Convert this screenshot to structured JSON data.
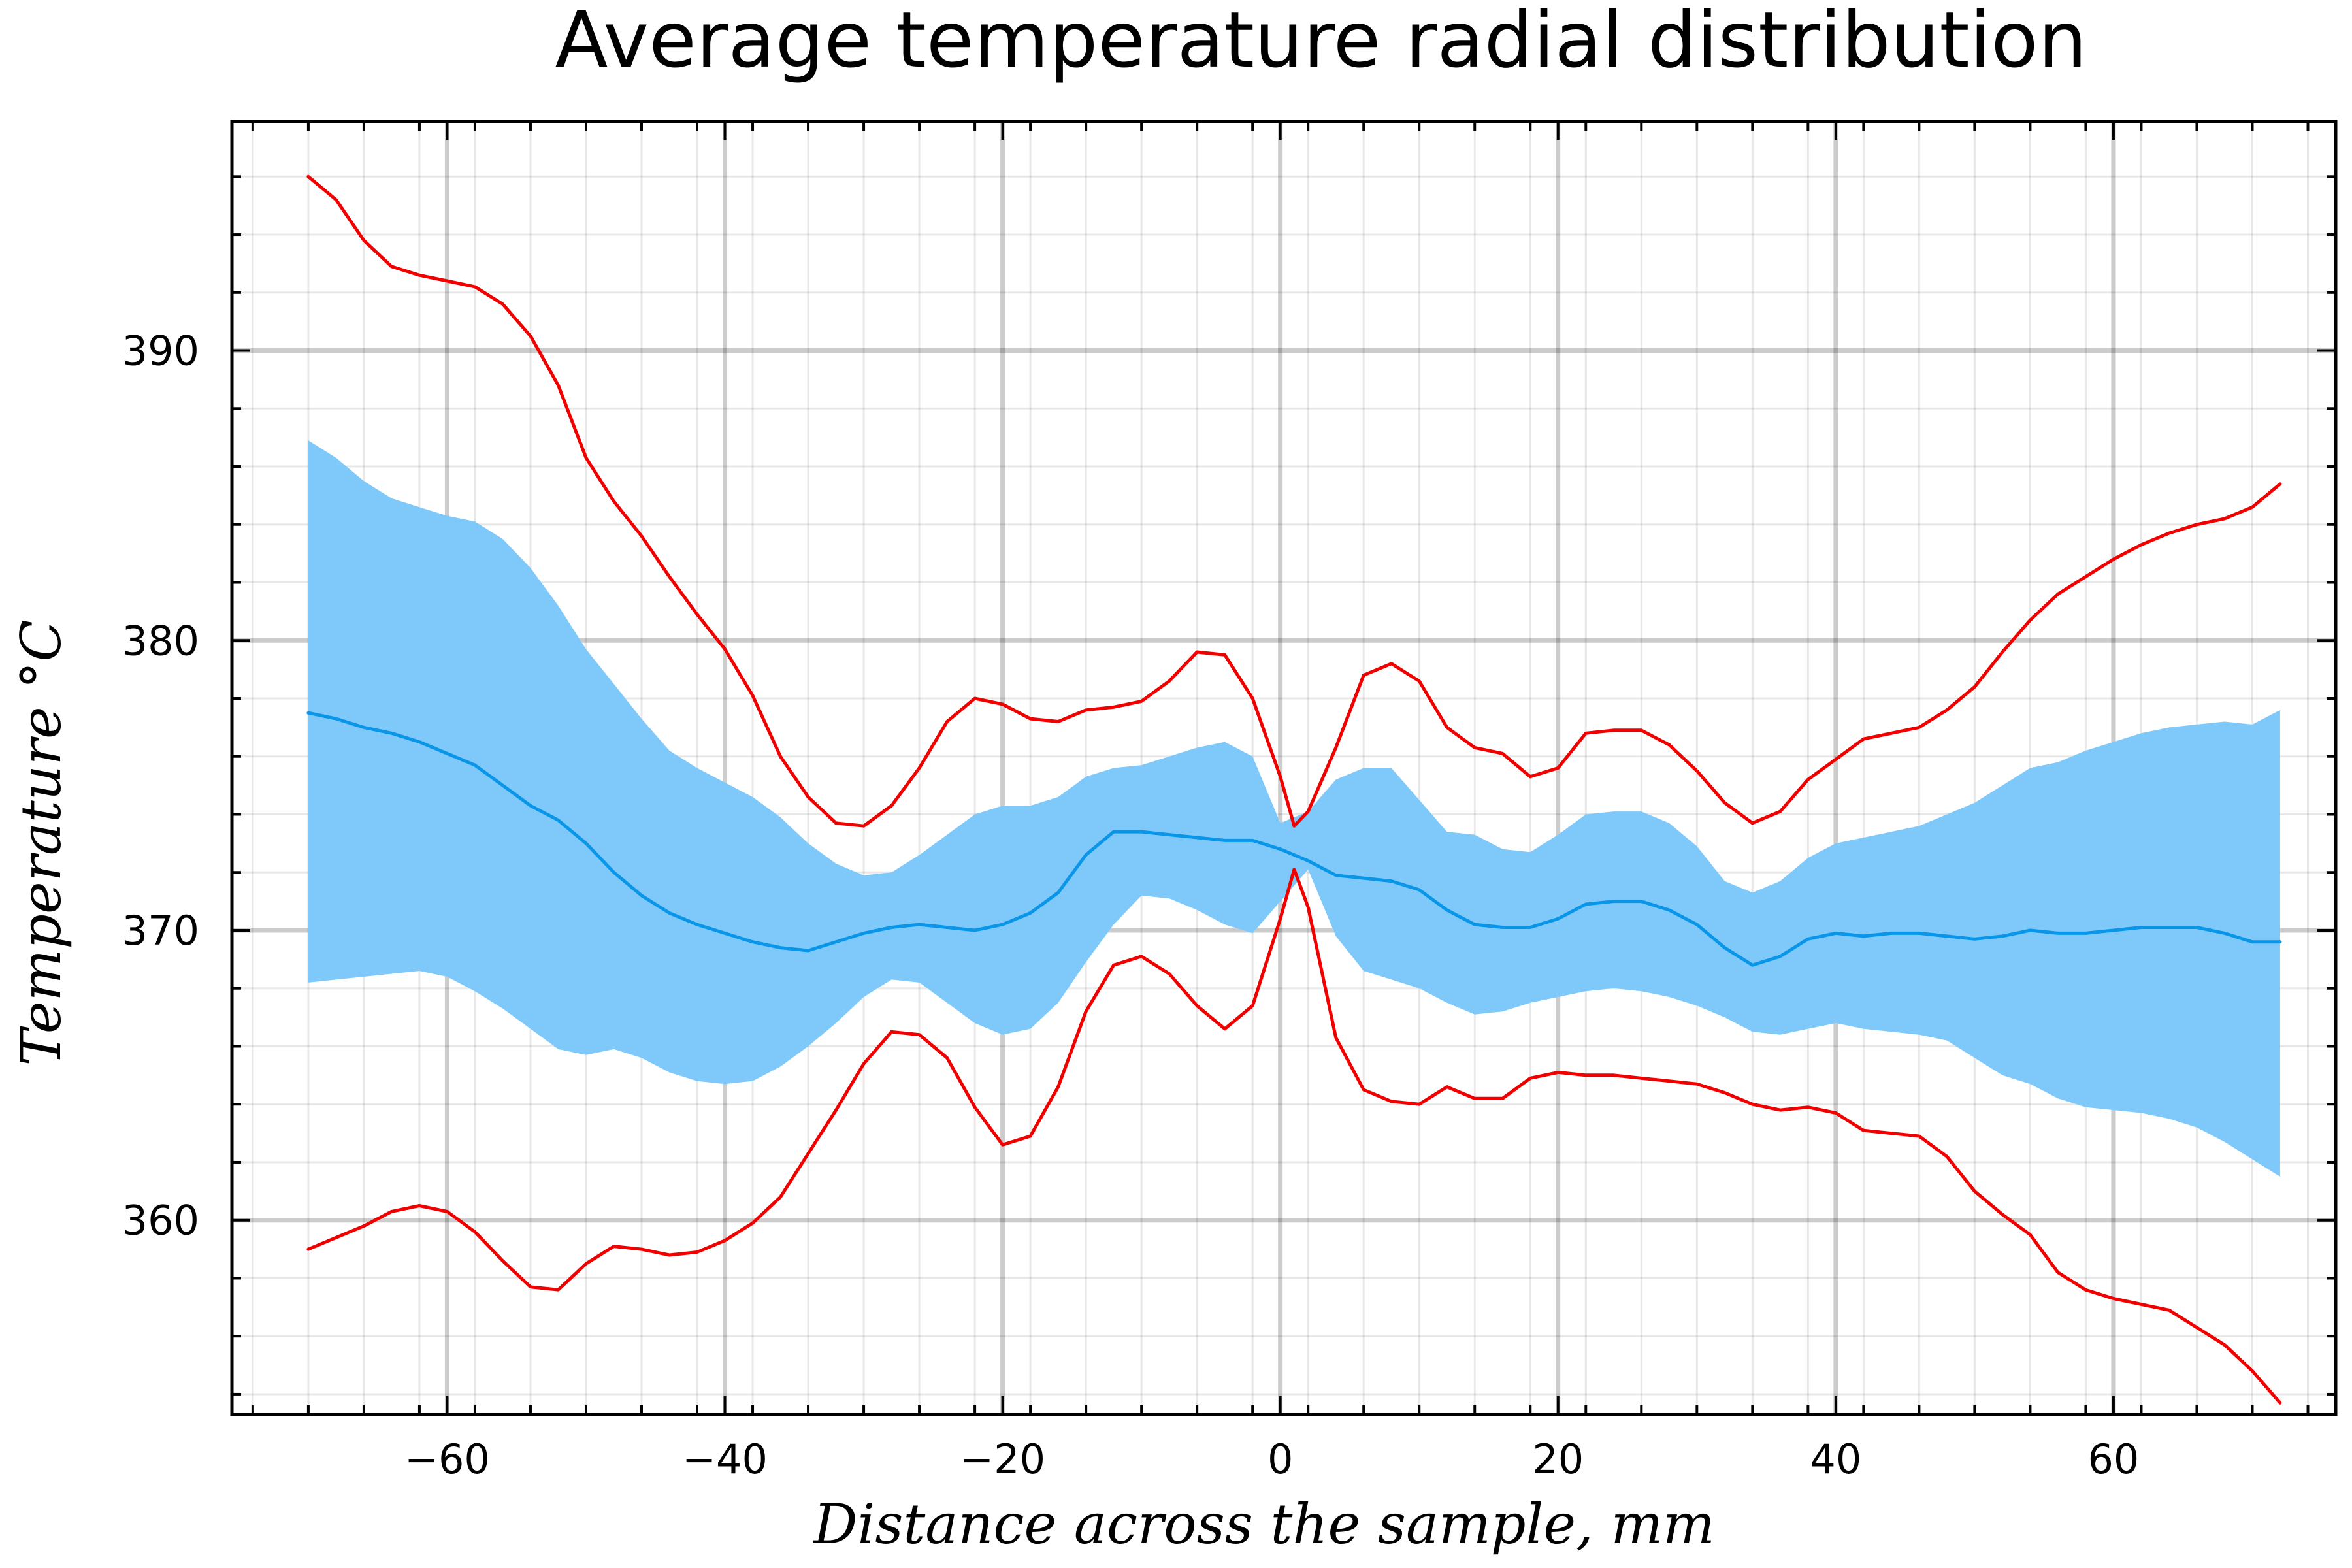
{
  "chart_data": {
    "type": "line",
    "title": "Average temperature radial distribution",
    "xlabel": "Distance across the sample, mm",
    "ylabel": "Temperature °C",
    "xlim": [
      -75.5,
      76
    ],
    "ylim": [
      353.3,
      397.9
    ],
    "x_ticks": [
      -60,
      -40,
      -20,
      0,
      20,
      40,
      60
    ],
    "x_tick_labels": [
      "−60",
      "−40",
      "−20",
      "0",
      "20",
      "40",
      "60"
    ],
    "y_ticks": [
      360,
      370,
      380,
      390
    ],
    "y_tick_labels": [
      "360",
      "370",
      "380",
      "390"
    ],
    "grid": true,
    "legend": "none",
    "colors": {
      "mean": "#0a96e8",
      "band": "#7fc9fa",
      "extremes": "#f20000"
    },
    "series": [
      {
        "role": "band",
        "x": [
          -70,
          -68,
          -66,
          -64,
          -62,
          -60,
          -58,
          -56,
          -54,
          -52,
          -50,
          -48,
          -46,
          -44,
          -42,
          -40,
          -38,
          -36,
          -34,
          -32,
          -30,
          -28,
          -26,
          -24,
          -22,
          -20,
          -18,
          -16,
          -14,
          -12,
          -10,
          -8,
          -6,
          -4,
          -2,
          0,
          2,
          4,
          6,
          8,
          10,
          12,
          14,
          16,
          18,
          20,
          22,
          24,
          26,
          28,
          30,
          32,
          34,
          36,
          38,
          40,
          42,
          44,
          46,
          48,
          50,
          52,
          54,
          56,
          58,
          60,
          62,
          64,
          66,
          68,
          70,
          72
        ],
        "upper": [
          386.9,
          386.3,
          385.5,
          384.9,
          384.6,
          384.3,
          384.1,
          383.5,
          382.5,
          381.2,
          379.7,
          378.5,
          377.3,
          376.2,
          375.6,
          375.1,
          374.6,
          373.9,
          373.0,
          372.3,
          371.9,
          372.0,
          372.6,
          373.3,
          374.0,
          374.3,
          374.3,
          374.6,
          375.3,
          375.6,
          375.7,
          376.0,
          376.3,
          376.5,
          376.0,
          373.7,
          374.1,
          375.2,
          375.6,
          375.6,
          374.5,
          373.4,
          373.3,
          372.8,
          372.7,
          373.3,
          374.0,
          374.1,
          374.1,
          373.7,
          372.9,
          371.7,
          371.3,
          371.7,
          372.5,
          373.0,
          373.2,
          373.4,
          373.6,
          374.0,
          374.4,
          375.0,
          375.6,
          375.8,
          376.2,
          376.5,
          376.8,
          377.0,
          377.1,
          377.2,
          377.1,
          377.6
        ],
        "lower": [
          368.2,
          368.3,
          368.4,
          368.5,
          368.6,
          368.4,
          367.9,
          367.3,
          366.6,
          365.9,
          365.7,
          365.9,
          365.6,
          365.1,
          364.8,
          364.7,
          364.8,
          365.3,
          366.0,
          366.8,
          367.7,
          368.3,
          368.2,
          367.5,
          366.8,
          366.4,
          366.6,
          367.5,
          368.9,
          370.2,
          371.2,
          371.1,
          370.7,
          370.2,
          369.9,
          371.0,
          372.1,
          369.8,
          368.6,
          368.3,
          368.0,
          367.5,
          367.1,
          367.2,
          367.5,
          367.7,
          367.9,
          368.0,
          367.9,
          367.7,
          367.4,
          367.0,
          366.5,
          366.4,
          366.6,
          366.8,
          366.6,
          366.5,
          366.4,
          366.2,
          365.6,
          365.0,
          364.7,
          364.2,
          363.9,
          363.8,
          363.7,
          363.5,
          363.2,
          362.7,
          362.1,
          361.5
        ]
      },
      {
        "role": "mean",
        "x": [
          -70,
          -68,
          -66,
          -64,
          -62,
          -60,
          -58,
          -56,
          -54,
          -52,
          -50,
          -48,
          -46,
          -44,
          -42,
          -40,
          -38,
          -36,
          -34,
          -32,
          -30,
          -28,
          -26,
          -24,
          -22,
          -20,
          -18,
          -16,
          -14,
          -12,
          -10,
          -8,
          -6,
          -4,
          -2,
          0,
          2,
          4,
          6,
          8,
          10,
          12,
          14,
          16,
          18,
          20,
          22,
          24,
          26,
          28,
          30,
          32,
          34,
          36,
          38,
          40,
          42,
          44,
          46,
          48,
          50,
          52,
          54,
          56,
          58,
          60,
          62,
          64,
          66,
          68,
          70,
          72
        ],
        "values": [
          377.5,
          377.3,
          377.0,
          376.8,
          376.5,
          376.1,
          375.7,
          375.0,
          374.3,
          373.8,
          373.0,
          372.0,
          371.2,
          370.6,
          370.2,
          369.9,
          369.6,
          369.4,
          369.3,
          369.6,
          369.9,
          370.1,
          370.2,
          370.1,
          370.0,
          370.2,
          370.6,
          371.3,
          372.6,
          373.4,
          373.4,
          373.3,
          373.2,
          373.1,
          373.1,
          372.8,
          372.4,
          371.9,
          371.8,
          371.7,
          371.4,
          370.7,
          370.2,
          370.1,
          370.1,
          370.4,
          370.9,
          371.0,
          371.0,
          370.7,
          370.2,
          369.4,
          368.8,
          369.1,
          369.7,
          369.9,
          369.8,
          369.9,
          369.9,
          369.8,
          369.7,
          369.8,
          370.0,
          369.9,
          369.9,
          370.0,
          370.1,
          370.1,
          370.1,
          369.9,
          369.6,
          369.6
        ]
      },
      {
        "role": "upper-extreme",
        "x": [
          -70,
          -68,
          -66,
          -64,
          -62,
          -60,
          -58,
          -56,
          -54,
          -52,
          -50,
          -48,
          -46,
          -44,
          -42,
          -40,
          -38,
          -36,
          -34,
          -32,
          -30,
          -28,
          -26,
          -24,
          -22,
          -20,
          -18,
          -16,
          -14,
          -12,
          -10,
          -8,
          -6,
          -4,
          -2,
          0,
          1,
          2,
          4,
          6,
          8,
          10,
          12,
          14,
          16,
          18,
          20,
          22,
          24,
          26,
          28,
          30,
          32,
          34,
          36,
          38,
          40,
          42,
          44,
          46,
          48,
          50,
          52,
          54,
          56,
          58,
          60,
          62,
          64,
          66,
          68,
          70,
          72
        ],
        "values": [
          396.0,
          395.2,
          393.8,
          392.9,
          392.6,
          392.4,
          392.2,
          391.6,
          390.5,
          388.8,
          386.3,
          384.8,
          383.6,
          382.2,
          380.9,
          379.7,
          378.1,
          376.0,
          374.6,
          373.7,
          373.6,
          374.3,
          375.6,
          377.2,
          378.0,
          377.8,
          377.3,
          377.2,
          377.6,
          377.7,
          377.9,
          378.6,
          379.6,
          379.5,
          378.0,
          375.3,
          373.6,
          374.1,
          376.3,
          378.8,
          379.2,
          378.6,
          377.0,
          376.3,
          376.1,
          375.3,
          375.6,
          376.8,
          376.9,
          376.9,
          376.4,
          375.5,
          374.4,
          373.7,
          374.1,
          375.2,
          375.9,
          376.6,
          376.8,
          377.0,
          377.6,
          378.4,
          379.6,
          380.7,
          381.6,
          382.2,
          382.8,
          383.3,
          383.7,
          384.0,
          384.2,
          384.6,
          385.4
        ]
      },
      {
        "role": "lower-extreme",
        "x": [
          -70,
          -68,
          -66,
          -64,
          -62,
          -60,
          -58,
          -56,
          -54,
          -52,
          -50,
          -48,
          -46,
          -44,
          -42,
          -40,
          -38,
          -36,
          -34,
          -32,
          -30,
          -28,
          -26,
          -24,
          -22,
          -20,
          -18,
          -16,
          -14,
          -12,
          -10,
          -8,
          -6,
          -4,
          -2,
          0,
          1,
          2,
          4,
          6,
          8,
          10,
          12,
          14,
          16,
          18,
          20,
          22,
          24,
          26,
          28,
          30,
          32,
          34,
          36,
          38,
          40,
          42,
          44,
          46,
          48,
          50,
          52,
          54,
          56,
          58,
          60,
          62,
          64,
          66,
          68,
          70,
          72
        ],
        "values": [
          359.0,
          359.4,
          359.8,
          360.3,
          360.5,
          360.3,
          359.6,
          358.6,
          357.7,
          357.6,
          358.5,
          359.1,
          359.0,
          358.8,
          358.9,
          359.3,
          359.9,
          360.8,
          362.3,
          363.8,
          365.4,
          366.5,
          366.4,
          365.6,
          363.9,
          362.6,
          362.9,
          364.6,
          367.2,
          368.8,
          369.1,
          368.5,
          367.4,
          366.6,
          367.4,
          370.4,
          372.1,
          370.8,
          366.3,
          364.5,
          364.1,
          364.0,
          364.6,
          364.2,
          364.2,
          364.9,
          365.1,
          365.0,
          365.0,
          364.9,
          364.8,
          364.7,
          364.4,
          364.0,
          363.8,
          363.9,
          363.7,
          363.1,
          363.0,
          362.9,
          362.2,
          361.0,
          360.2,
          359.5,
          358.2,
          357.6,
          357.3,
          357.1,
          356.9,
          356.3,
          355.7,
          354.8,
          353.7
        ]
      }
    ]
  }
}
